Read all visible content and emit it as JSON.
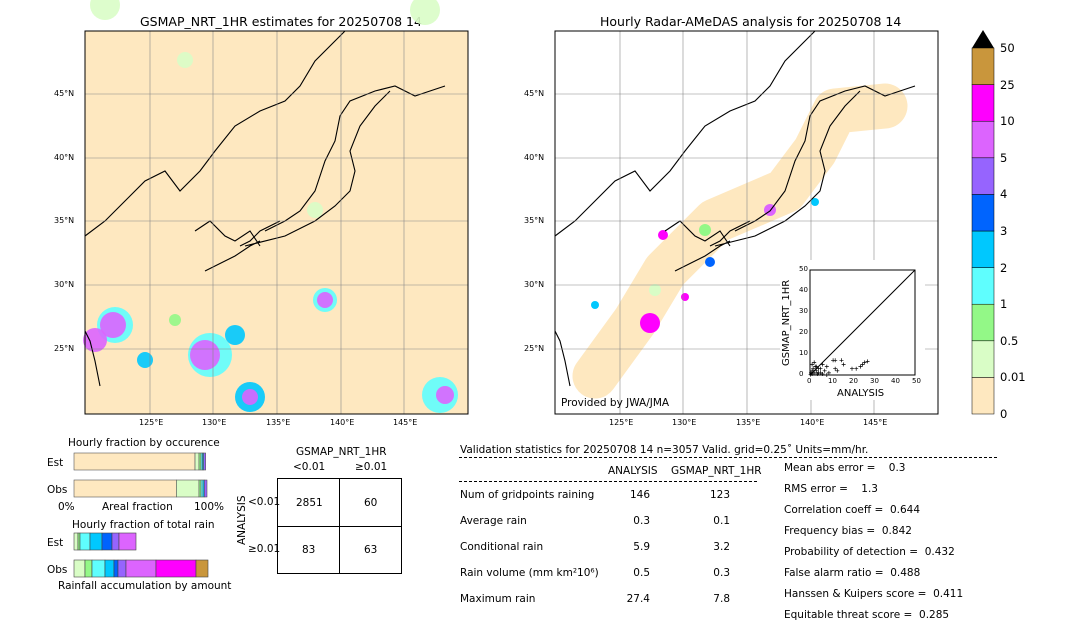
{
  "chart_data": [
    {
      "type": "heatmap",
      "title": "GSMAP_NRT_1HR estimates for 20250708 14",
      "lat_ticks": [
        "45°N",
        "40°N",
        "35°N",
        "30°N",
        "25°N"
      ],
      "lon_ticks": [
        "125°E",
        "130°E",
        "135°E",
        "140°E",
        "145°E"
      ]
    },
    {
      "type": "heatmap",
      "title": "Hourly Radar-AMeDAS analysis for 20250708 14",
      "lat_ticks": [
        "45°N",
        "40°N",
        "35°N",
        "30°N",
        "25°N"
      ],
      "lon_ticks": [
        "125°E",
        "130°E",
        "135°E",
        "140°E",
        "145°E"
      ],
      "annotation": "Provided by JWA/JMA"
    },
    {
      "type": "scatter",
      "xlabel": "ANALYSIS",
      "ylabel": "GSMAP_NRT_1HR",
      "xlim": [
        0,
        50
      ],
      "ylim": [
        0,
        50
      ],
      "ticks": [
        "0",
        "10",
        "20",
        "30",
        "40",
        "50"
      ],
      "points": [
        [
          0.5,
          1
        ],
        [
          1,
          2
        ],
        [
          1.5,
          3
        ],
        [
          2,
          1
        ],
        [
          2.5,
          4
        ],
        [
          3,
          2
        ],
        [
          3.5,
          0.5
        ],
        [
          4,
          3
        ],
        [
          5,
          1
        ],
        [
          6,
          5
        ],
        [
          7,
          2
        ],
        [
          8,
          4
        ],
        [
          9,
          1
        ],
        [
          1,
          5
        ],
        [
          2,
          6
        ],
        [
          3,
          4
        ],
        [
          4,
          1
        ],
        [
          5,
          3
        ],
        [
          11,
          7
        ],
        [
          12,
          7
        ],
        [
          15,
          7
        ],
        [
          16,
          5
        ],
        [
          12,
          3
        ],
        [
          13,
          2
        ],
        [
          20,
          3
        ],
        [
          22,
          3
        ],
        [
          24,
          4
        ],
        [
          25,
          5
        ],
        [
          26,
          6
        ],
        [
          27.4,
          6.5
        ],
        [
          0.3,
          0.2
        ],
        [
          1,
          0.5
        ],
        [
          6,
          0.5
        ],
        [
          8,
          0
        ]
      ]
    },
    {
      "type": "bar",
      "title": "Hourly fraction by occurence",
      "categories": [
        "Est",
        "Obs"
      ],
      "xlabel": "Areal fraction",
      "ticks": [
        "0%",
        "100%"
      ]
    },
    {
      "type": "bar",
      "title": "Hourly fraction of total rain",
      "categories": [
        "Est",
        "Obs"
      ],
      "xlabel": "Rainfall accumulation by amount"
    },
    {
      "type": "table",
      "title": "GSMAP_NRT_1HR",
      "col_headers": [
        "<0.01",
        "≥0.01"
      ],
      "row_label": "ANALYSIS",
      "row_headers": [
        "<0.01",
        "≥0.01"
      ],
      "cells": [
        [
          "2851",
          "60"
        ],
        [
          "83",
          "63"
        ]
      ]
    }
  ],
  "colorbar": {
    "labels": [
      "0",
      "0.01",
      "0.5",
      "1",
      "2",
      "3",
      "4",
      "5",
      "10",
      "25",
      "50"
    ],
    "colors": [
      "#fee8c0",
      "#d9fdc6",
      "#93f887",
      "#5ffefe",
      "#00c8fe",
      "#0064fe",
      "#9664fe",
      "#dc64fe",
      "#fe00fe",
      "#c9963c"
    ]
  },
  "validation": {
    "header": "Validation statistics for 20250708 14  n=3057 Valid. grid=0.25˚ Units=mm/hr.",
    "col1": "ANALYSIS",
    "col2": "GSMAP_NRT_1HR",
    "rows": [
      {
        "label": "Num of gridpoints raining",
        "a": "146",
        "g": "123"
      },
      {
        "label": "Average rain",
        "a": "0.3",
        "g": "0.1"
      },
      {
        "label": "Conditional rain",
        "a": "5.9",
        "g": "3.2"
      },
      {
        "label": "Rain volume (mm km²10⁶)",
        "a": "0.5",
        "g": "0.3"
      },
      {
        "label": "Maximum rain",
        "a": "27.4",
        "g": "7.8"
      }
    ],
    "scores": [
      "Mean abs error =    0.3",
      "RMS error =    1.3",
      "Correlation coeff =  0.644",
      "Frequency bias =  0.842",
      "Probability of detection =  0.432",
      "False alarm ratio =  0.488",
      "Hanssen & Kuipers score =  0.411",
      "Equitable threat score =  0.285"
    ]
  }
}
